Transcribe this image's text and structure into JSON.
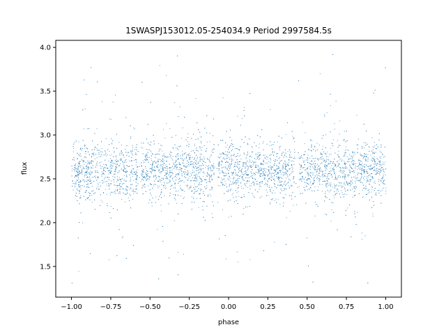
{
  "chart_data": {
    "type": "scatter",
    "title": "1SWASPJ153012.05-254034.9 Period 2997584.5s",
    "xlabel": "phase",
    "ylabel": "flux",
    "xlim": [
      -1.1,
      1.1
    ],
    "ylim": [
      1.15,
      4.08
    ],
    "x_ticks": [
      -1.0,
      -0.75,
      -0.5,
      -0.25,
      0.0,
      0.25,
      0.5,
      0.75,
      1.0
    ],
    "x_tick_labels": [
      "−1.00",
      "−0.75",
      "−0.50",
      "−0.25",
      "0.00",
      "0.25",
      "0.50",
      "0.75",
      "1.00"
    ],
    "y_ticks": [
      1.5,
      2.0,
      2.5,
      3.0,
      3.5,
      4.0
    ],
    "y_tick_labels": [
      "1.5",
      "2.0",
      "2.5",
      "3.0",
      "3.5",
      "4.0"
    ],
    "grid": false,
    "marker_color": "#1f77b4",
    "series": [
      {
        "x_range": [
          -1.0,
          1.0
        ],
        "central_flux": 2.6,
        "band": [
          2.2,
          3.0
        ],
        "outlier_range": [
          1.3,
          3.95
        ],
        "gap_phases": [
          -0.57,
          -0.08,
          0.43
        ]
      }
    ]
  }
}
